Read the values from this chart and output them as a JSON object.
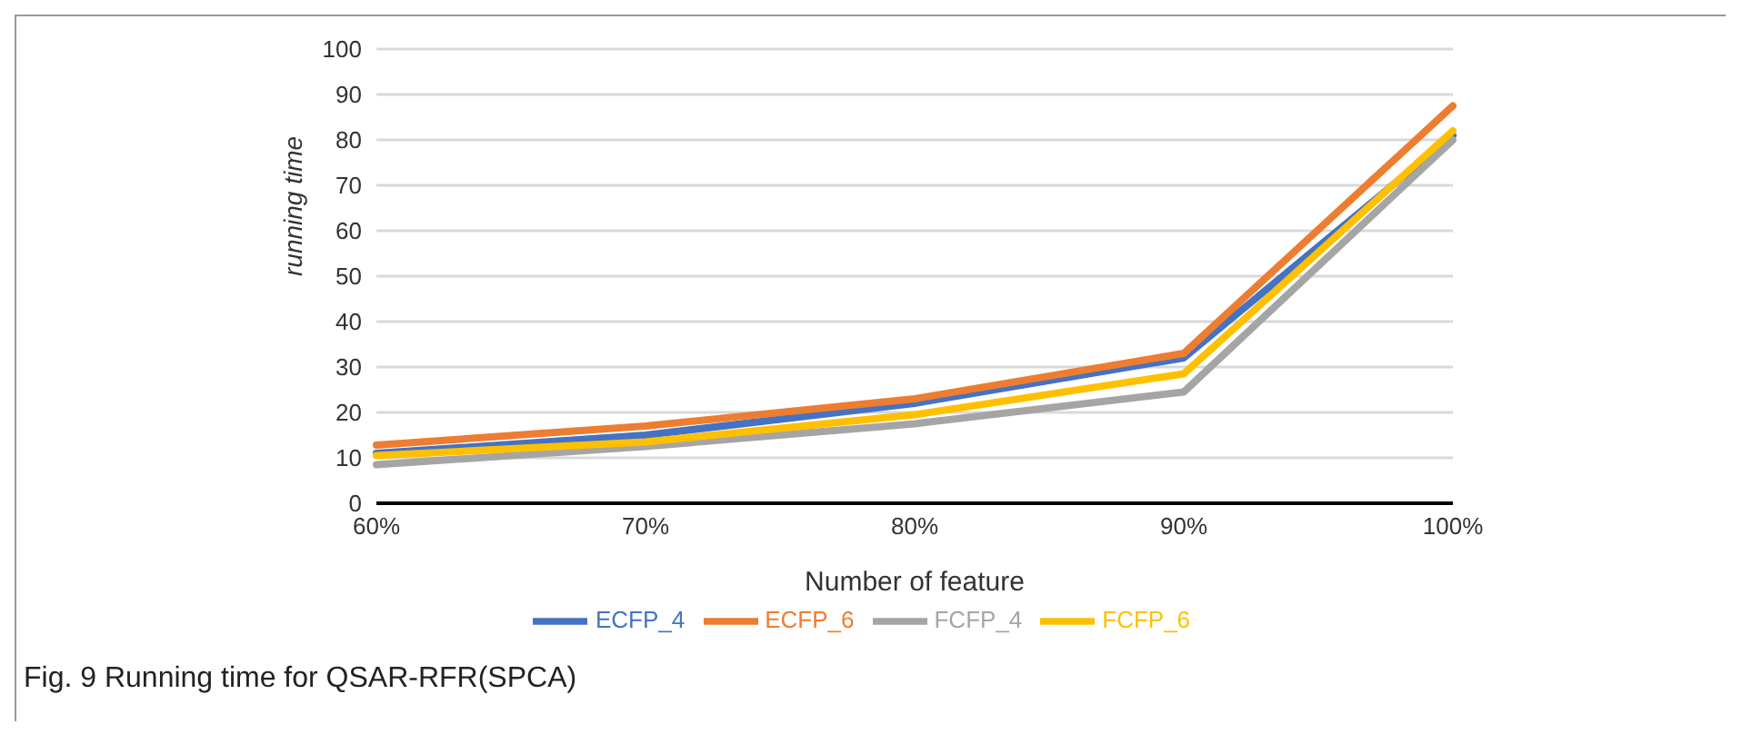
{
  "chart_data": {
    "type": "line",
    "title": "Fig. 9  Running time for QSAR-RFR(SPCA)",
    "xlabel": "Number of feature",
    "ylabel": "running time",
    "categories": [
      "60%",
      "70%",
      "80%",
      "90%",
      "100%"
    ],
    "series": [
      {
        "name": "ECFP_4",
        "color": "#4472c4",
        "values": [
          11,
          15,
          22,
          32,
          81
        ]
      },
      {
        "name": "ECFP_6",
        "color": "#ed7d31",
        "values": [
          12.8,
          17,
          23,
          33,
          87.5
        ]
      },
      {
        "name": "FCFP_4",
        "color": "#a5a5a5",
        "values": [
          8.5,
          12.5,
          17.5,
          24.5,
          80
        ]
      },
      {
        "name": "FCFP_6",
        "color": "#ffc000",
        "values": [
          10.5,
          13.5,
          19.5,
          28.5,
          82
        ]
      }
    ],
    "ylim": [
      0,
      100
    ],
    "yticks": [
      0,
      10,
      20,
      30,
      40,
      50,
      60,
      70,
      80,
      90,
      100
    ],
    "grid": "y",
    "legend": "bottom",
    "marker": "none",
    "line_style": "solid"
  }
}
